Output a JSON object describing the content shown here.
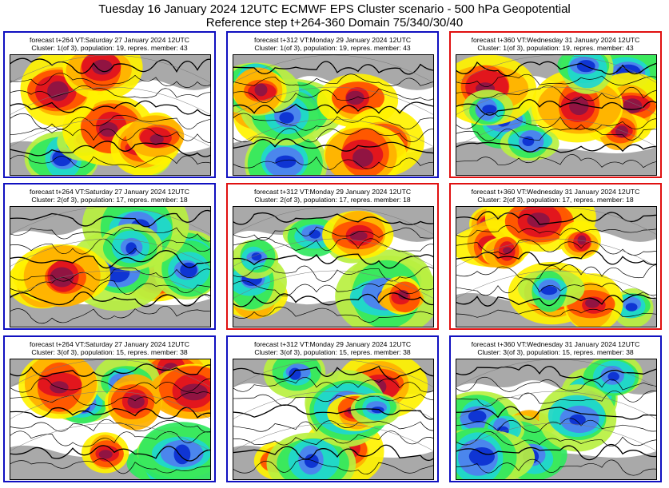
{
  "title_line1": "Tuesday 16 January 2024 12UTC ECMWF EPS Cluster scenario - 500 hPa Geopotential",
  "title_line2": "Reference step t+264-360 Domain 75/340/30/40",
  "colors": {
    "frame_default": "#1010c0",
    "frame_highlight": "#e01010",
    "land": "#a9a9a9",
    "anomaly_scale": [
      "#0a2fd0",
      "#4f7ff0",
      "#1fd6d0",
      "#30e860",
      "#b8f040",
      "#fff200",
      "#ffb000",
      "#ff5000",
      "#e01020",
      "#8a1545"
    ]
  },
  "panels": [
    {
      "forecast": "forecast t+264 VT:Saturday 27 January 2024 12UTC",
      "cluster": "Cluster: 1(of 3), population: 19, repres. member: 43",
      "frame": "blue"
    },
    {
      "forecast": "forecast t+312 VT:Monday 29 January 2024 12UTC",
      "cluster": "Cluster: 1(of 3), population: 19, repres. member: 43",
      "frame": "blue"
    },
    {
      "forecast": "forecast t+360 VT:Wednesday 31 January 2024 12UTC",
      "cluster": "Cluster: 1(of 3), population: 19, repres. member: 43",
      "frame": "red"
    },
    {
      "forecast": "forecast t+264 VT:Saturday 27 January 2024 12UTC",
      "cluster": "Cluster: 2(of 3), population: 17, repres. member: 18",
      "frame": "blue"
    },
    {
      "forecast": "forecast t+312 VT:Monday 29 January 2024 12UTC",
      "cluster": "Cluster: 2(of 3), population: 17, repres. member: 18",
      "frame": "red"
    },
    {
      "forecast": "forecast t+360 VT:Wednesday 31 January 2024 12UTC",
      "cluster": "Cluster: 2(of 3), population: 17, repres. member: 18",
      "frame": "red"
    },
    {
      "forecast": "forecast t+264 VT:Saturday 27 January 2024 12UTC",
      "cluster": "Cluster: 3(of 3), population: 15, repres. member: 38",
      "frame": "blue"
    },
    {
      "forecast": "forecast t+312 VT:Monday 29 January 2024 12UTC",
      "cluster": "Cluster: 3(of 3), population: 15, repres. member: 38",
      "frame": "blue"
    },
    {
      "forecast": "forecast t+360 VT:Wednesday 31 January 2024 12UTC",
      "cluster": "Cluster: 3(of 3), population: 15, repres. member: 38",
      "frame": "blue"
    }
  ]
}
